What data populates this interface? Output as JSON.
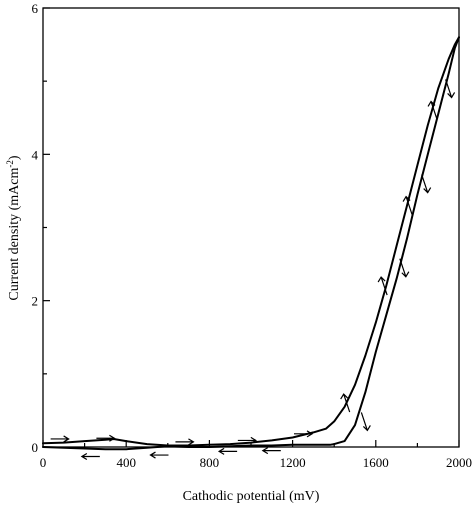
{
  "chart_data": {
    "type": "line",
    "xlabel": "Cathodic potential (mV)",
    "ylabel": "Current density (mAcm",
    "ylabel_sup": "-2",
    "ylabel_close": ")",
    "xlim": [
      0,
      2000
    ],
    "ylim": [
      0,
      6
    ],
    "x_ticks": [
      0,
      400,
      800,
      1200,
      1600,
      2000
    ],
    "x_tick_labels": [
      "0",
      "400",
      "800",
      "1200",
      "1600",
      "2000"
    ],
    "y_ticks": [
      0,
      2,
      4,
      6
    ],
    "y_tick_labels": [
      "0",
      "2",
      "4",
      "6"
    ],
    "grid": false,
    "legend": "none",
    "series": [
      {
        "direction": "forward",
        "x": [
          0,
          100,
          200,
          300,
          340,
          400,
          500,
          600,
          700,
          800,
          900,
          1000,
          1100,
          1200,
          1300,
          1360,
          1400,
          1450,
          1500,
          1550,
          1600,
          1650,
          1700,
          1750,
          1800,
          1850,
          1900,
          1950,
          1980,
          2000
        ],
        "y": [
          0.05,
          0.06,
          0.08,
          0.1,
          0.11,
          0.08,
          0.04,
          0.02,
          0.02,
          0.03,
          0.04,
          0.06,
          0.09,
          0.13,
          0.2,
          0.25,
          0.35,
          0.55,
          0.85,
          1.25,
          1.7,
          2.2,
          2.75,
          3.3,
          3.85,
          4.4,
          4.9,
          5.3,
          5.5,
          5.6
        ]
      },
      {
        "direction": "reverse",
        "x": [
          2000,
          1980,
          1950,
          1900,
          1850,
          1800,
          1750,
          1700,
          1650,
          1600,
          1550,
          1500,
          1450,
          1400,
          1380,
          1300,
          1200,
          1100,
          1000,
          900,
          800,
          700,
          600,
          500,
          400,
          300,
          200,
          100,
          0
        ],
        "y": [
          5.6,
          5.45,
          5.1,
          4.55,
          4.0,
          3.45,
          2.85,
          2.3,
          1.8,
          1.3,
          0.75,
          0.3,
          0.08,
          0.04,
          0.03,
          0.03,
          0.03,
          0.02,
          0.02,
          0.01,
          0.0,
          0.0,
          0.01,
          -0.01,
          -0.03,
          -0.03,
          -0.02,
          -0.01,
          0.0
        ]
      }
    ],
    "arrows": [
      {
        "x": 80,
        "y": 0.11,
        "dir": "right"
      },
      {
        "x": 300,
        "y": 0.12,
        "dir": "right"
      },
      {
        "x": 230,
        "y": -0.13,
        "dir": "left"
      },
      {
        "x": 560,
        "y": -0.11,
        "dir": "left"
      },
      {
        "x": 680,
        "y": 0.07,
        "dir": "right"
      },
      {
        "x": 980,
        "y": 0.09,
        "dir": "right"
      },
      {
        "x": 1250,
        "y": 0.18,
        "dir": "right"
      },
      {
        "x": 890,
        "y": -0.06,
        "dir": "left"
      },
      {
        "x": 1100,
        "y": -0.05,
        "dir": "left"
      },
      {
        "x": 1460,
        "y": 0.6,
        "dir": "up"
      },
      {
        "x": 1640,
        "y": 2.2,
        "dir": "up"
      },
      {
        "x": 1760,
        "y": 3.3,
        "dir": "up"
      },
      {
        "x": 1880,
        "y": 4.6,
        "dir": "up"
      },
      {
        "x": 1545,
        "y": 0.35,
        "dir": "down"
      },
      {
        "x": 1730,
        "y": 2.45,
        "dir": "down"
      },
      {
        "x": 1835,
        "y": 3.6,
        "dir": "down"
      },
      {
        "x": 1950,
        "y": 4.9,
        "dir": "down"
      }
    ]
  }
}
